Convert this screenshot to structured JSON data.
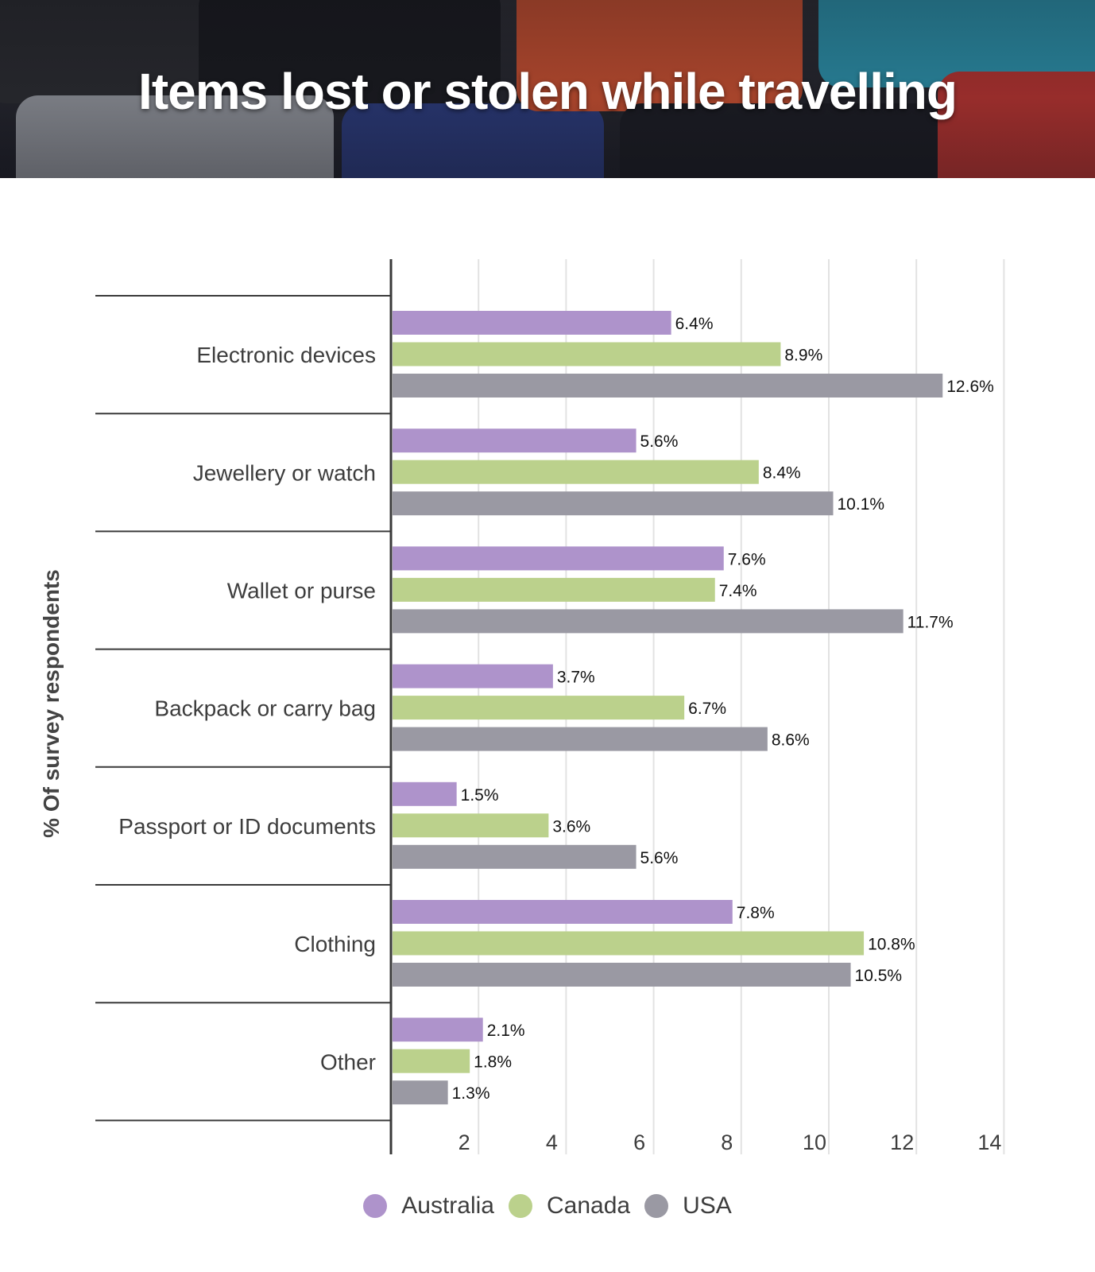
{
  "header": {
    "title": "Items lost or stolen while travelling"
  },
  "chart_data": {
    "type": "bar",
    "orientation": "horizontal",
    "title": "Items lost or stolen while travelling",
    "ylabel": "% Of survey respondents",
    "xlabel": "",
    "xlim": [
      0,
      14
    ],
    "x_ticks": [
      "2",
      "4",
      "6",
      "8",
      "10",
      "12",
      "14"
    ],
    "grid": true,
    "legend_position": "bottom",
    "categories": [
      "Electronic devices",
      "Jewellery or watch",
      "Wallet or purse",
      "Backpack or carry bag",
      "Passport or ID documents",
      "Clothing",
      "Other"
    ],
    "series": [
      {
        "name": "Australia",
        "color": "#ae93cb",
        "values": [
          6.4,
          5.6,
          7.6,
          3.7,
          1.5,
          7.8,
          2.1
        ],
        "labels": [
          "6.4%",
          "5.6%",
          "7.6%",
          "3.7%",
          "1.5%",
          "7.8%",
          "2.1%"
        ]
      },
      {
        "name": "Canada",
        "color": "#bbd18c",
        "values": [
          8.9,
          8.4,
          7.4,
          6.7,
          3.6,
          10.8,
          1.8
        ],
        "labels": [
          "8.9%",
          "8.4%",
          "7.4%",
          "6.7%",
          "3.6%",
          "10.8%",
          "1.8%"
        ]
      },
      {
        "name": "USA",
        "color": "#9a99a3",
        "values": [
          12.6,
          10.1,
          11.7,
          8.6,
          5.6,
          10.5,
          1.3
        ],
        "labels": [
          "12.6%",
          "10.1%",
          "11.7%",
          "8.6%",
          "5.6%",
          "10.5%",
          "1.3%"
        ]
      }
    ]
  }
}
